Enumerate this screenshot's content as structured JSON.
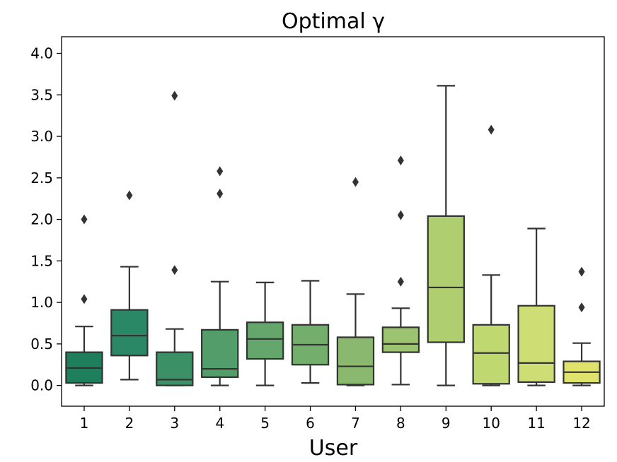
{
  "chart_data": {
    "type": "box",
    "title": "Optimal γ",
    "xlabel": "User",
    "ylabel": "",
    "ylim": [
      -0.25,
      4.2
    ],
    "yticks": [
      "0.0",
      "0.5",
      "1.0",
      "1.5",
      "2.0",
      "2.5",
      "3.0",
      "3.5",
      "4.0"
    ],
    "categories": [
      "1",
      "2",
      "3",
      "4",
      "5",
      "6",
      "7",
      "8",
      "9",
      "10",
      "11",
      "12"
    ],
    "boxes": [
      {
        "user": "1",
        "whisker_low": 0.0,
        "q1": 0.03,
        "median": 0.21,
        "q3": 0.4,
        "whisker_high": 0.71,
        "outliers": [
          1.04,
          2.0
        ],
        "color": "#1f7f5c"
      },
      {
        "user": "2",
        "whisker_low": 0.07,
        "q1": 0.36,
        "median": 0.6,
        "q3": 0.91,
        "whisker_high": 1.43,
        "outliers": [
          2.29
        ],
        "color": "#2b8866"
      },
      {
        "user": "3",
        "whisker_low": 0.0,
        "q1": 0.0,
        "median": 0.07,
        "q3": 0.4,
        "whisker_high": 0.68,
        "outliers": [
          1.39,
          3.49
        ],
        "color": "#3b9066"
      },
      {
        "user": "4",
        "whisker_low": 0.0,
        "q1": 0.1,
        "median": 0.2,
        "q3": 0.67,
        "whisker_high": 1.25,
        "outliers": [
          2.31,
          2.58
        ],
        "color": "#539d6a"
      },
      {
        "user": "5",
        "whisker_low": 0.0,
        "q1": 0.32,
        "median": 0.56,
        "q3": 0.76,
        "whisker_high": 1.24,
        "outliers": [],
        "color": "#64a66b"
      },
      {
        "user": "6",
        "whisker_low": 0.03,
        "q1": 0.25,
        "median": 0.49,
        "q3": 0.73,
        "whisker_high": 1.26,
        "outliers": [],
        "color": "#74ae6d"
      },
      {
        "user": "7",
        "whisker_low": 0.0,
        "q1": 0.01,
        "median": 0.23,
        "q3": 0.58,
        "whisker_high": 1.1,
        "outliers": [
          2.45
        ],
        "color": "#89b86e"
      },
      {
        "user": "8",
        "whisker_low": 0.01,
        "q1": 0.4,
        "median": 0.5,
        "q3": 0.7,
        "whisker_high": 0.93,
        "outliers": [
          1.25,
          2.05,
          2.71
        ],
        "color": "#9cc36f"
      },
      {
        "user": "9",
        "whisker_low": 0.0,
        "q1": 0.52,
        "median": 1.18,
        "q3": 2.04,
        "whisker_high": 3.61,
        "outliers": [],
        "color": "#aece70"
      },
      {
        "user": "10",
        "whisker_low": 0.0,
        "q1": 0.02,
        "median": 0.39,
        "q3": 0.73,
        "whisker_high": 1.33,
        "outliers": [
          3.08
        ],
        "color": "#c0d870"
      },
      {
        "user": "11",
        "whisker_low": 0.0,
        "q1": 0.04,
        "median": 0.27,
        "q3": 0.96,
        "whisker_high": 1.89,
        "outliers": [],
        "color": "#cedd74"
      },
      {
        "user": "12",
        "whisker_low": 0.0,
        "q1": 0.03,
        "median": 0.16,
        "q3": 0.29,
        "whisker_high": 0.51,
        "outliers": [
          0.94,
          1.37
        ],
        "color": "#dfe36c"
      }
    ],
    "grid": false,
    "legend": "none"
  }
}
